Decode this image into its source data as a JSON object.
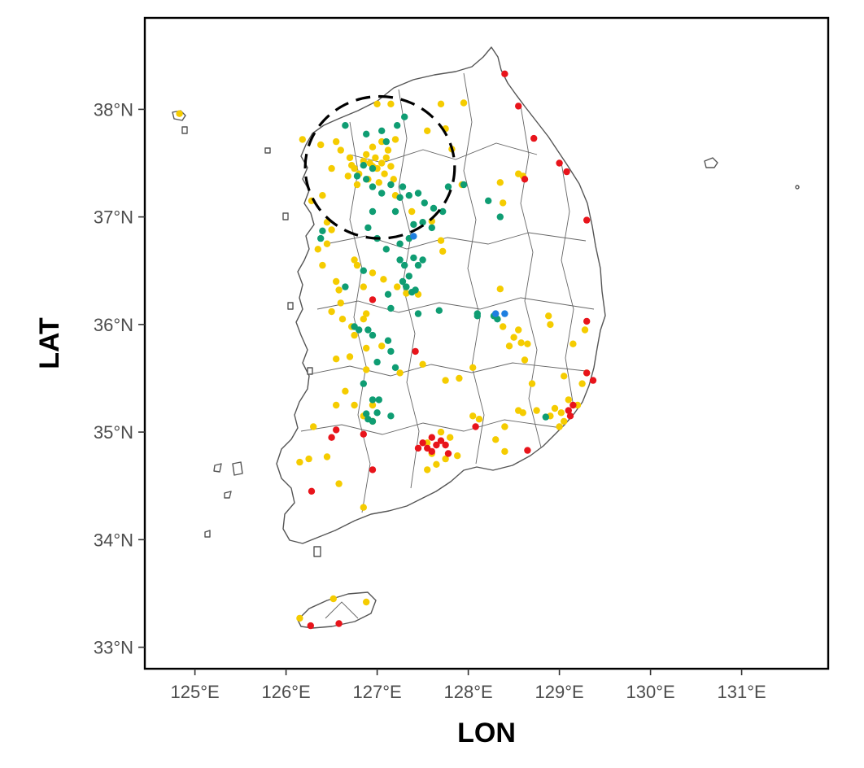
{
  "chart_data": {
    "type": "scatter",
    "subtype": "map",
    "xlabel": "LON",
    "ylabel": "LAT",
    "xlim": [
      124.45,
      131.95
    ],
    "ylim": [
      32.8,
      38.85
    ],
    "xticks": [
      125,
      126,
      127,
      128,
      129,
      130,
      131
    ],
    "yticks": [
      33,
      34,
      35,
      36,
      37,
      38
    ],
    "xtick_labels": [
      "125°E",
      "126°E",
      "127°E",
      "128°E",
      "129°E",
      "130°E",
      "131°E"
    ],
    "ytick_labels": [
      "33°N",
      "34°N",
      "35°N",
      "36°N",
      "37°N",
      "38°N"
    ],
    "grid": false,
    "legend": "none",
    "colors": {
      "yellow": "#F5CC00",
      "green": "#0F9D73",
      "red": "#E8141B",
      "blue": "#1E7FE0"
    },
    "highlight_circle": {
      "center_lon": 127.03,
      "center_lat": 37.46,
      "radius_lon": 0.82,
      "radius_lat": 0.66,
      "style": "dashed"
    },
    "series": [
      {
        "color": "yellow",
        "points": [
          [
            124.83,
            37.96
          ],
          [
            126.55,
            37.7
          ],
          [
            126.38,
            37.67
          ],
          [
            126.6,
            37.62
          ],
          [
            126.7,
            37.55
          ],
          [
            126.72,
            37.48
          ],
          [
            126.75,
            37.45
          ],
          [
            126.8,
            37.4
          ],
          [
            126.85,
            37.52
          ],
          [
            126.88,
            37.58
          ],
          [
            126.92,
            37.5
          ],
          [
            126.95,
            37.47
          ],
          [
            126.98,
            37.55
          ],
          [
            127.0,
            37.45
          ],
          [
            127.05,
            37.5
          ],
          [
            127.08,
            37.4
          ],
          [
            127.1,
            37.55
          ],
          [
            127.12,
            37.62
          ],
          [
            127.15,
            37.47
          ],
          [
            127.18,
            37.35
          ],
          [
            126.9,
            37.35
          ],
          [
            126.68,
            37.38
          ],
          [
            126.78,
            37.3
          ],
          [
            127.02,
            37.32
          ],
          [
            127.2,
            37.72
          ],
          [
            127.05,
            37.7
          ],
          [
            126.95,
            37.65
          ],
          [
            127.0,
            38.05
          ],
          [
            127.15,
            38.05
          ],
          [
            127.7,
            38.05
          ],
          [
            127.95,
            38.06
          ],
          [
            127.75,
            37.82
          ],
          [
            127.55,
            37.8
          ],
          [
            127.82,
            37.63
          ],
          [
            128.35,
            37.32
          ],
          [
            128.38,
            37.13
          ],
          [
            128.6,
            37.38
          ],
          [
            127.2,
            37.2
          ],
          [
            126.4,
            37.2
          ],
          [
            126.45,
            36.95
          ],
          [
            126.5,
            36.88
          ],
          [
            126.35,
            36.7
          ],
          [
            126.45,
            36.75
          ],
          [
            126.75,
            36.6
          ],
          [
            126.78,
            36.55
          ],
          [
            126.55,
            36.4
          ],
          [
            126.58,
            36.32
          ],
          [
            126.85,
            36.35
          ],
          [
            126.95,
            36.48
          ],
          [
            127.07,
            36.42
          ],
          [
            127.22,
            36.35
          ],
          [
            127.32,
            36.29
          ],
          [
            127.45,
            36.28
          ],
          [
            126.5,
            36.12
          ],
          [
            126.62,
            36.05
          ],
          [
            126.72,
            35.98
          ],
          [
            126.85,
            36.05
          ],
          [
            126.75,
            35.9
          ],
          [
            126.88,
            35.78
          ],
          [
            127.05,
            35.8
          ],
          [
            126.55,
            35.68
          ],
          [
            126.7,
            35.7
          ],
          [
            126.88,
            35.58
          ],
          [
            127.25,
            35.55
          ],
          [
            127.5,
            35.63
          ],
          [
            127.75,
            35.48
          ],
          [
            126.65,
            35.38
          ],
          [
            126.75,
            35.25
          ],
          [
            126.55,
            35.25
          ],
          [
            126.85,
            35.15
          ],
          [
            126.95,
            35.1
          ],
          [
            126.95,
            35.25
          ],
          [
            127.7,
            35.0
          ],
          [
            127.8,
            34.95
          ],
          [
            127.55,
            34.9
          ],
          [
            127.6,
            34.8
          ],
          [
            127.65,
            34.7
          ],
          [
            127.75,
            34.75
          ],
          [
            127.55,
            34.65
          ],
          [
            127.88,
            34.78
          ],
          [
            128.05,
            35.15
          ],
          [
            128.12,
            35.12
          ],
          [
            128.3,
            34.93
          ],
          [
            128.4,
            34.82
          ],
          [
            128.4,
            35.05
          ],
          [
            128.55,
            35.2
          ],
          [
            128.6,
            35.18
          ],
          [
            128.75,
            35.2
          ],
          [
            128.9,
            35.15
          ],
          [
            128.95,
            35.22
          ],
          [
            129.02,
            35.18
          ],
          [
            129.05,
            35.1
          ],
          [
            129.0,
            35.05
          ],
          [
            129.1,
            35.3
          ],
          [
            129.2,
            35.25
          ],
          [
            129.25,
            35.45
          ],
          [
            129.3,
            35.55
          ],
          [
            129.05,
            35.52
          ],
          [
            128.7,
            35.45
          ],
          [
            128.62,
            35.67
          ],
          [
            128.45,
            35.8
          ],
          [
            128.5,
            35.88
          ],
          [
            128.58,
            35.83
          ],
          [
            128.65,
            35.82
          ],
          [
            128.55,
            35.95
          ],
          [
            128.38,
            35.98
          ],
          [
            128.9,
            36.0
          ],
          [
            128.88,
            36.08
          ],
          [
            129.28,
            35.95
          ],
          [
            129.15,
            35.82
          ],
          [
            128.05,
            35.6
          ],
          [
            127.9,
            35.5
          ],
          [
            128.35,
            36.33
          ],
          [
            128.55,
            37.4
          ],
          [
            127.93,
            37.3
          ],
          [
            127.7,
            36.78
          ],
          [
            127.72,
            36.68
          ],
          [
            126.4,
            36.55
          ],
          [
            126.6,
            36.2
          ],
          [
            126.88,
            36.1
          ],
          [
            126.3,
            35.05
          ],
          [
            126.25,
            34.75
          ],
          [
            126.15,
            34.72
          ],
          [
            126.45,
            34.77
          ],
          [
            126.58,
            34.52
          ],
          [
            126.85,
            34.3
          ],
          [
            126.52,
            33.45
          ],
          [
            126.88,
            33.42
          ],
          [
            126.15,
            33.27
          ],
          [
            127.38,
            37.05
          ],
          [
            127.6,
            36.96
          ],
          [
            126.18,
            37.72
          ],
          [
            126.5,
            37.45
          ],
          [
            126.28,
            37.15
          ]
        ]
      },
      {
        "color": "green",
        "points": [
          [
            126.65,
            37.85
          ],
          [
            126.88,
            37.77
          ],
          [
            127.1,
            37.7
          ],
          [
            127.22,
            37.85
          ],
          [
            127.3,
            37.93
          ],
          [
            127.05,
            37.8
          ],
          [
            126.95,
            37.45
          ],
          [
            126.85,
            37.48
          ],
          [
            126.78,
            37.38
          ],
          [
            126.88,
            37.35
          ],
          [
            126.95,
            37.28
          ],
          [
            127.05,
            37.22
          ],
          [
            127.15,
            37.3
          ],
          [
            127.28,
            37.28
          ],
          [
            127.35,
            37.2
          ],
          [
            127.45,
            37.22
          ],
          [
            127.52,
            37.13
          ],
          [
            127.62,
            37.08
          ],
          [
            127.72,
            37.05
          ],
          [
            127.78,
            37.28
          ],
          [
            127.95,
            37.3
          ],
          [
            128.22,
            37.15
          ],
          [
            128.35,
            37.0
          ],
          [
            127.25,
            37.18
          ],
          [
            127.2,
            37.05
          ],
          [
            126.95,
            37.05
          ],
          [
            126.9,
            36.9
          ],
          [
            127.0,
            36.8
          ],
          [
            127.1,
            36.7
          ],
          [
            127.25,
            36.75
          ],
          [
            127.35,
            36.8
          ],
          [
            127.4,
            36.93
          ],
          [
            127.5,
            36.95
          ],
          [
            127.6,
            36.9
          ],
          [
            127.25,
            36.6
          ],
          [
            127.3,
            36.55
          ],
          [
            127.35,
            36.45
          ],
          [
            127.4,
            36.62
          ],
          [
            127.45,
            36.55
          ],
          [
            127.28,
            36.4
          ],
          [
            127.32,
            36.35
          ],
          [
            127.38,
            36.3
          ],
          [
            127.42,
            36.32
          ],
          [
            127.12,
            36.28
          ],
          [
            127.15,
            36.15
          ],
          [
            127.45,
            36.1
          ],
          [
            127.68,
            36.13
          ],
          [
            128.1,
            36.1
          ],
          [
            128.28,
            36.08
          ],
          [
            128.32,
            36.05
          ],
          [
            126.75,
            35.98
          ],
          [
            126.8,
            35.95
          ],
          [
            126.9,
            35.95
          ],
          [
            126.95,
            35.9
          ],
          [
            127.12,
            35.85
          ],
          [
            127.15,
            35.75
          ],
          [
            127.2,
            35.6
          ],
          [
            127.0,
            35.65
          ],
          [
            126.85,
            35.45
          ],
          [
            126.95,
            35.3
          ],
          [
            127.02,
            35.3
          ],
          [
            127.15,
            35.15
          ],
          [
            126.9,
            35.12
          ],
          [
            126.95,
            35.1
          ],
          [
            126.88,
            35.17
          ],
          [
            127.0,
            35.18
          ],
          [
            128.85,
            35.14
          ],
          [
            126.4,
            36.87
          ],
          [
            126.38,
            36.8
          ],
          [
            126.65,
            36.35
          ],
          [
            126.85,
            36.5
          ],
          [
            128.1,
            36.08
          ],
          [
            127.5,
            36.6
          ]
        ]
      },
      {
        "color": "red",
        "points": [
          [
            128.4,
            38.33
          ],
          [
            128.55,
            38.03
          ],
          [
            128.72,
            37.73
          ],
          [
            129.0,
            37.5
          ],
          [
            129.08,
            37.42
          ],
          [
            128.62,
            37.35
          ],
          [
            129.3,
            36.97
          ],
          [
            126.95,
            36.23
          ],
          [
            127.42,
            35.75
          ],
          [
            129.3,
            36.03
          ],
          [
            129.37,
            35.48
          ],
          [
            129.3,
            35.55
          ],
          [
            129.1,
            35.2
          ],
          [
            129.12,
            35.15
          ],
          [
            129.15,
            35.25
          ],
          [
            127.5,
            34.9
          ],
          [
            127.55,
            34.85
          ],
          [
            127.6,
            34.82
          ],
          [
            127.65,
            34.88
          ],
          [
            127.7,
            34.92
          ],
          [
            127.75,
            34.88
          ],
          [
            127.78,
            34.8
          ],
          [
            127.6,
            34.95
          ],
          [
            127.45,
            34.85
          ],
          [
            128.08,
            35.05
          ],
          [
            128.65,
            34.83
          ],
          [
            126.55,
            35.02
          ],
          [
            126.5,
            34.95
          ],
          [
            126.85,
            34.98
          ],
          [
            126.95,
            34.65
          ],
          [
            126.28,
            34.45
          ],
          [
            126.58,
            33.22
          ],
          [
            126.27,
            33.2
          ]
        ]
      },
      {
        "color": "blue",
        "points": [
          [
            127.4,
            36.82
          ],
          [
            128.4,
            36.1
          ],
          [
            128.3,
            36.1
          ]
        ]
      }
    ]
  }
}
